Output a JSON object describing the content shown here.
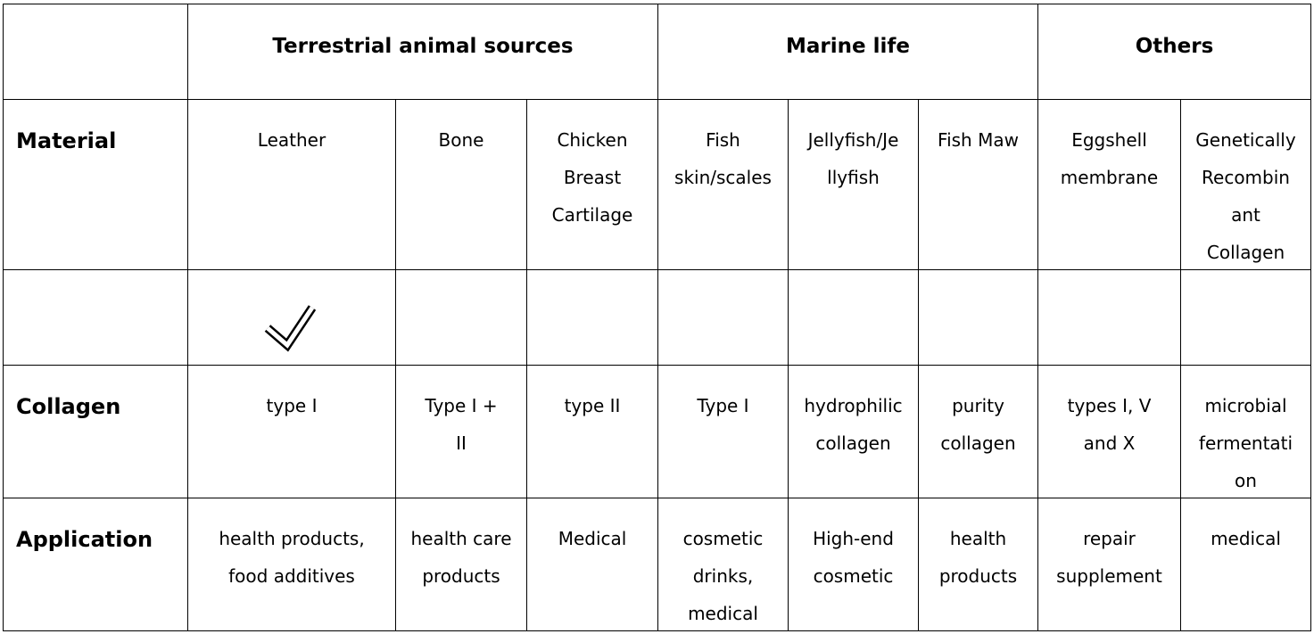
{
  "header": {
    "groups": [
      "Terrestrial animal sources",
      "Marine life",
      "Others"
    ]
  },
  "rows": [
    {
      "label": "Material",
      "cells": [
        [
          "Leather"
        ],
        [
          "Bone"
        ],
        [
          "Chicken",
          "Breast",
          "Cartilage"
        ],
        [
          "Fish",
          "skin/scales"
        ],
        [
          "Jellyfish/Je",
          "llyfish"
        ],
        [
          "Fish Maw"
        ],
        [
          "Eggshell",
          "membrane"
        ],
        [
          "Genetically",
          "Recombin",
          "ant",
          "Collagen"
        ]
      ]
    },
    {
      "label": "Collagen",
      "cells": [
        [
          "type I"
        ],
        [
          "Type I +",
          "II"
        ],
        [
          "type II"
        ],
        [
          "Type I"
        ],
        [
          "hydrophilic",
          "collagen"
        ],
        [
          "purity",
          "collagen"
        ],
        [
          "types I, V",
          "and X"
        ],
        [
          "microbial",
          "fermentati",
          "on"
        ]
      ]
    },
    {
      "label": "Application",
      "cells": [
        [
          "health products,",
          "food additives"
        ],
        [
          "health care",
          "products"
        ],
        [
          "Medical"
        ],
        [
          "cosmetic",
          "drinks,",
          "medical"
        ],
        [
          "High-end",
          "cosmetic"
        ],
        [
          "health",
          "products"
        ],
        [
          "repair",
          "supplement"
        ],
        [
          "medical"
        ]
      ]
    }
  ]
}
